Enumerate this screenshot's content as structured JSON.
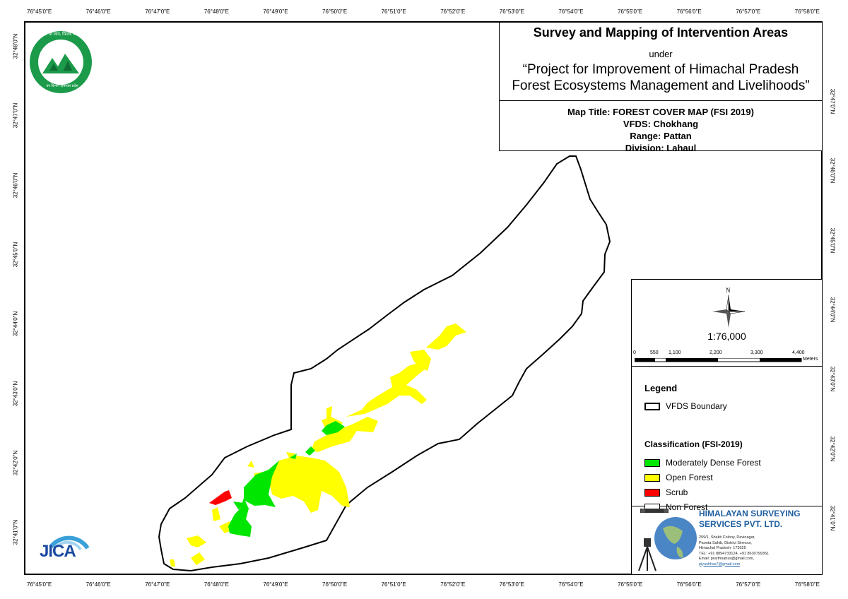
{
  "map": {
    "top_lon_labels": [
      "76°45'0\"E",
      "76°46'0\"E",
      "76°47'0\"E",
      "76°48'0\"E",
      "76°49'0\"E",
      "76°50'0\"E",
      "76°51'0\"E",
      "76°52'0\"E",
      "76°53'0\"E",
      "76°54'0\"E",
      "76°55'0\"E",
      "76°56'0\"E",
      "76°57'0\"E",
      "76°58'0\"E"
    ],
    "bottom_lon_labels": [
      "76°45'0\"E",
      "76°46'0\"E",
      "76°47'0\"E",
      "76°48'0\"E",
      "76°49'0\"E",
      "76°50'0\"E",
      "76°51'0\"E",
      "76°52'0\"E",
      "76°53'0\"E",
      "76°54'0\"E",
      "76°55'0\"E",
      "76°56'0\"E",
      "76°57'0\"E",
      "76°58'0\"E"
    ],
    "left_lat_labels": [
      "32°48'0\"N",
      "32°47'0\"N",
      "32°46'0\"N",
      "32°45'0\"N",
      "32°44'0\"N",
      "32°43'0\"N",
      "32°42'0\"N",
      "32°41'0\"N"
    ],
    "right_lat_labels": [
      "32°47'0\"N",
      "32°46'0\"N",
      "32°45'0\"N",
      "32°44'0\"N",
      "32°43'0\"N",
      "32°42'0\"N",
      "32°41'0\"N"
    ]
  },
  "title_box": {
    "main": "Survey and Mapping of Intervention Areas",
    "under": "under",
    "project_line1": "“Project for Improvement of Himachal Pradesh",
    "project_line2": "Forest Ecosystems Management and Livelihoods”",
    "map_title": "Map Title: FOREST COVER MAP (FSI 2019)",
    "vfds": "VFDS: Chokhang",
    "range": "Range: Pattan",
    "division": "Division: Lahaul"
  },
  "north_arrow": {
    "label": "N"
  },
  "scale": {
    "ratio": "1:76,000",
    "ticks": [
      "0",
      "550",
      "1,100",
      "2,200",
      "3,300",
      "4,400"
    ],
    "unit": "Meters"
  },
  "legend": {
    "title": "Legend",
    "boundary_label": "VFDS Boundary",
    "classification_title": "Classification (FSI-2019)",
    "items": [
      {
        "label": "Moderately Dense Forest",
        "color": "#00e600"
      },
      {
        "label": "Open Forest",
        "color": "#ffff00"
      },
      {
        "label": "Scrub",
        "color": "#ff0000"
      },
      {
        "label": "Non Forest",
        "color": "#ffffff"
      }
    ]
  },
  "company": {
    "name_line1": "HIMALAYAN SURVEYING",
    "name_line2": "SERVICES PVT. LTD.",
    "addr1": "259/1, Shakti Colony, Devinagar,",
    "addr2": "Paonta Sahib, District Sirmour,",
    "addr3": "Himachal Pradesh- 173025",
    "tel": "TEL: +91 8894733124, +91 8630799361",
    "email1": "Email: prarthnahss@gmail.com,",
    "email2": "piyushhss7@gmail.com"
  },
  "logos": {
    "hp_forest_text_top": "हर भी जान, फिरक ग्वाला",
    "hp_forest_text_bottom": "वन विभाग हिमाचल प्रदेश",
    "jica_text": "JICA"
  }
}
